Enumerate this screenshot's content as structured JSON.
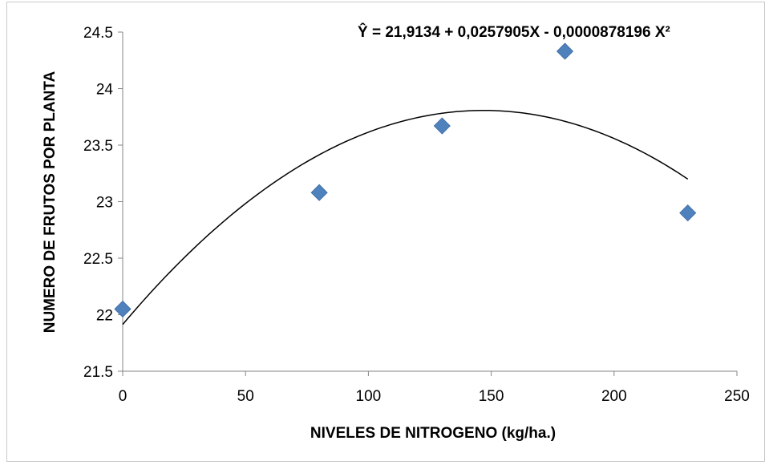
{
  "chart_data": {
    "type": "scatter",
    "title": "",
    "equation": "Ŷ = 21,9134 + 0,0257905X - 0,0000878196 X²",
    "xlabel": "NIVELES DE NITROGENO (kg/ha.)",
    "ylabel": "NUMERO DE FRUTOS POR PLANTA",
    "xlim": [
      0,
      250
    ],
    "ylim": [
      21.5,
      24.5
    ],
    "x_ticks": [
      0,
      50,
      100,
      150,
      200,
      250
    ],
    "y_ticks": [
      21.5,
      22,
      22.5,
      23,
      23.5,
      24,
      24.5
    ],
    "x_tick_labels": [
      "0",
      "50",
      "100",
      "150",
      "200",
      "250"
    ],
    "y_tick_labels": [
      "21.5",
      "22",
      "22.5",
      "23",
      "23.5",
      "24",
      "24.5"
    ],
    "grid": false,
    "legend": "none",
    "series": [
      {
        "marker": "diamond",
        "color": "#4f81bd",
        "x": [
          0,
          80,
          130,
          180,
          230
        ],
        "y": [
          22.05,
          23.08,
          23.67,
          24.33,
          22.9
        ]
      }
    ],
    "trendline": {
      "type": "polynomial-2",
      "coefficients": [
        21.9134,
        0.0257905,
        -8.78196e-05
      ],
      "x_range": [
        0,
        230
      ],
      "color": "#000000"
    }
  }
}
